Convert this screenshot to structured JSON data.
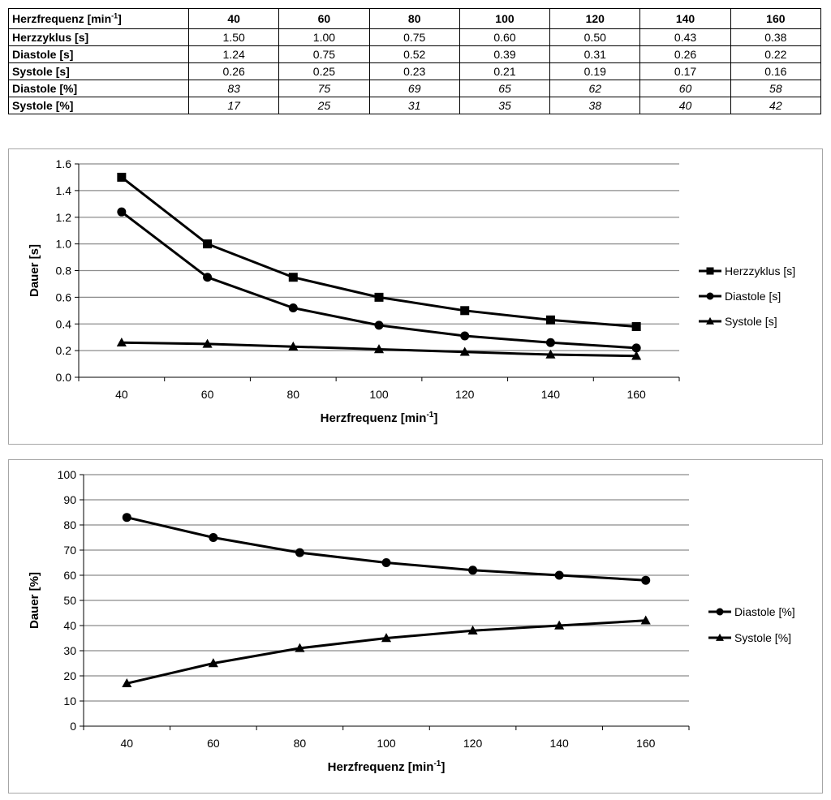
{
  "table": {
    "header_label": "Herzfrequenz [min",
    "header_label_sup": "-1",
    "header_label_end": "]",
    "columns": [
      "40",
      "60",
      "80",
      "100",
      "120",
      "140",
      "160"
    ],
    "rows": [
      {
        "label": "Herzzyklus [s]",
        "values": [
          "1.50",
          "1.00",
          "0.75",
          "0.60",
          "0.50",
          "0.43",
          "0.38"
        ],
        "italic": false
      },
      {
        "label": "Diastole [s]",
        "values": [
          "1.24",
          "0.75",
          "0.52",
          "0.39",
          "0.31",
          "0.26",
          "0.22"
        ],
        "italic": false
      },
      {
        "label": "Systole [s]",
        "values": [
          "0.26",
          "0.25",
          "0.23",
          "0.21",
          "0.19",
          "0.17",
          "0.16"
        ],
        "italic": false
      },
      {
        "label": "Diastole [%]",
        "values": [
          "83",
          "75",
          "69",
          "65",
          "62",
          "60",
          "58"
        ],
        "italic": true
      },
      {
        "label": "Systole [%]",
        "values": [
          "17",
          "25",
          "31",
          "35",
          "38",
          "40",
          "42"
        ],
        "italic": true
      }
    ]
  },
  "chart_data": [
    {
      "type": "line",
      "x": [
        40,
        60,
        80,
        100,
        120,
        140,
        160
      ],
      "categories": [
        "40",
        "60",
        "80",
        "100",
        "120",
        "140",
        "160"
      ],
      "series": [
        {
          "name": "Herzzyklus [s]",
          "marker": "square",
          "values": [
            1.5,
            1.0,
            0.75,
            0.6,
            0.5,
            0.43,
            0.38
          ]
        },
        {
          "name": "Diastole [s]",
          "marker": "circle",
          "values": [
            1.24,
            0.75,
            0.52,
            0.39,
            0.31,
            0.26,
            0.22
          ]
        },
        {
          "name": "Systole [s]",
          "marker": "triangle",
          "values": [
            0.26,
            0.25,
            0.23,
            0.21,
            0.19,
            0.17,
            0.16
          ]
        }
      ],
      "xlabel": "Herzfrequenz [min",
      "xlabel_sup": "-1",
      "xlabel_end": "]",
      "ylabel": "Dauer [s]",
      "ylim": [
        0,
        1.6
      ],
      "yticks": [
        "0.0",
        "0.2",
        "0.4",
        "0.6",
        "0.8",
        "1.0",
        "1.2",
        "1.4",
        "1.6"
      ],
      "grid": true,
      "legend_position": "right",
      "line_color": "#000000",
      "grid_color": "#8c8c8c"
    },
    {
      "type": "line",
      "x": [
        40,
        60,
        80,
        100,
        120,
        140,
        160
      ],
      "categories": [
        "40",
        "60",
        "80",
        "100",
        "120",
        "140",
        "160"
      ],
      "series": [
        {
          "name": "Diastole [%]",
          "marker": "circle",
          "values": [
            83,
            75,
            69,
            65,
            62,
            60,
            58
          ]
        },
        {
          "name": "Systole [%]",
          "marker": "triangle",
          "values": [
            17,
            25,
            31,
            35,
            38,
            40,
            42
          ]
        }
      ],
      "xlabel": "Herzfrequenz [min",
      "xlabel_sup": "-1",
      "xlabel_end": "]",
      "ylabel": "Dauer [%]",
      "ylim": [
        0,
        100
      ],
      "yticks": [
        "0",
        "10",
        "20",
        "30",
        "40",
        "50",
        "60",
        "70",
        "80",
        "90",
        "100"
      ],
      "grid": true,
      "legend_position": "right",
      "line_color": "#000000",
      "grid_color": "#8c8c8c"
    }
  ]
}
